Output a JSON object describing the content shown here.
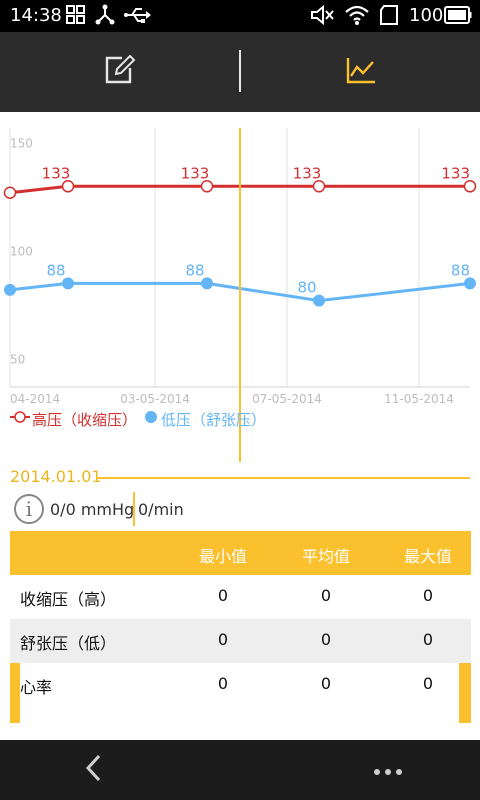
{
  "status_bar": {
    "time": "14:38",
    "battery_level": "100",
    "icons": [
      "gallery-icon",
      "share-network-icon",
      "usb-icon",
      "mute-icon",
      "wifi-icon",
      "sim-icon",
      "battery-icon"
    ]
  },
  "toolbar": {
    "left_icon": "edit-icon",
    "right_icon": "chart-icon",
    "active_tab": "chart"
  },
  "chart_data": {
    "type": "line",
    "x_tick_labels": [
      "04-2014",
      "03-05-2014",
      "07-05-2014",
      "11-05-2014"
    ],
    "y_tick_labels": [
      "150",
      "100",
      "50"
    ],
    "ylim": [
      40,
      160
    ],
    "grid": true,
    "series": [
      {
        "name": "高压（收缩压）",
        "color": "#d32f2f",
        "marker": "hollow-circle",
        "values": [
          130,
          133,
          133,
          133,
          133
        ],
        "point_labels": [
          "",
          "133",
          "133",
          "133",
          "133"
        ]
      },
      {
        "name": "低压（舒张压）",
        "color": "#64b5f6",
        "marker": "filled-circle",
        "values": [
          85,
          88,
          88,
          80,
          88
        ],
        "point_labels": [
          "",
          "88",
          "88",
          "80",
          "88"
        ]
      }
    ]
  },
  "legend": {
    "systolic": "高压（收缩压）",
    "diastolic": "低压（舒张压）"
  },
  "summary": {
    "date": "2014.01.01",
    "bp_value": "0/0 mmHg",
    "hr_value": "0/min"
  },
  "table": {
    "headers": [
      "最小值",
      "平均值",
      "最大值"
    ],
    "rows": [
      {
        "label": "收缩压（高）",
        "values": [
          "0",
          "0",
          "0"
        ]
      },
      {
        "label": "舒张压（低）",
        "values": [
          "0",
          "0",
          "0"
        ]
      },
      {
        "label": "心率",
        "values": [
          "0",
          "0",
          "0"
        ]
      }
    ]
  },
  "bottom_bar": {
    "back_icon": "back-chevron-icon",
    "more_icon": "more-dots-icon"
  },
  "colors": {
    "accent": "#fbc02d",
    "systolic": "#d32f2f",
    "diastolic": "#64b5f6",
    "toolbar_bg": "#2c2c2c"
  }
}
